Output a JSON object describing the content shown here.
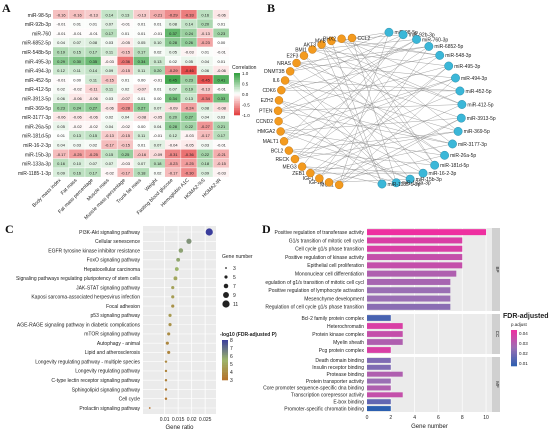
{
  "panels": {
    "a": {
      "label": "A",
      "rows": [
        "miR-98-5p",
        "miR-92b-3p",
        "miR-760",
        "miR-6852-5p",
        "miR-548b-5p",
        "miR-495-3p",
        "miR-494-3p",
        "miR-452-5p",
        "miR-412-5p",
        "miR-3913-5p",
        "miR-369-5p",
        "miR-3177-3p",
        "miR-26a-5p",
        "miR-181d-5p",
        "miR-16-2-3p",
        "miR-15b-3p",
        "miR-133a-3p",
        "miR-1185-1-3p"
      ],
      "left_cols": [
        "Body mass index",
        "Fat mass",
        "Fat mass percentage",
        "Muscle mass",
        "Muscle mass percentage",
        "Trunk fat mass",
        "Weight"
      ],
      "right_cols": [
        "Fasting blood glucose",
        "Hemoglobin A1C",
        "HOMA2-%S",
        "HOMA2-IR"
      ],
      "left_values": [
        [
          -0.16,
          -0.16,
          -0.13,
          0.14,
          0.13,
          -0.13,
          -0.21
        ],
        [
          -0.01,
          0.01,
          0.01,
          0.07,
          -0.01,
          0.01,
          0.01
        ],
        [
          -0.01,
          -0.01,
          -0.01,
          0.17,
          0.01,
          0.01,
          -0.01
        ],
        [
          0.04,
          0.07,
          0.08,
          0.03,
          -0.05,
          0.05,
          0.1
        ],
        [
          0.19,
          0.15,
          0.17,
          0.11,
          -0.15,
          0.17,
          0.02
        ],
        [
          0.29,
          0.3,
          0.35,
          -0.03,
          -0.36,
          0.34,
          0.13
        ],
        [
          0.12,
          0.11,
          0.14,
          0.09,
          -0.15,
          0.11,
          0.2
        ],
        [
          -0.01,
          0.0,
          0.11,
          -0.15,
          0.01,
          0.0,
          -0.01
        ],
        [
          0.02,
          -0.02,
          -0.11,
          0.11,
          0.02,
          -0.07,
          0.01
        ],
        [
          0.06,
          -0.06,
          -0.06,
          0.03,
          -0.07,
          0.01,
          0.0
        ],
        [
          0.23,
          0.24,
          0.27,
          -0.06,
          -0.28,
          0.27,
          0.07
        ],
        [
          -0.06,
          -0.06,
          -0.06,
          0.02,
          0.04,
          -0.08,
          -0.05
        ],
        [
          0.05,
          -0.02,
          -0.02,
          0.04,
          -0.02,
          0.0,
          0.04
        ],
        [
          0.01,
          0.13,
          0.15,
          -0.13,
          -0.15,
          0.11,
          -0.01
        ],
        [
          0.04,
          0.03,
          0.02,
          -0.17,
          -0.15,
          0.01,
          0.07
        ],
        [
          -0.17,
          -0.25,
          -0.25,
          0.15,
          0.25,
          -0.16,
          -0.09
        ],
        [
          0.16,
          0.1,
          0.07,
          0.07,
          -0.03,
          0.07,
          0.18
        ],
        [
          0.09,
          0.16,
          0.17,
          -0.02,
          -0.17,
          0.18,
          0.02
        ]
      ],
      "right_values": [
        [
          -0.29,
          -0.33,
          0.16,
          -0.06
        ],
        [
          0.08,
          0.14,
          0.2,
          0.01
        ],
        [
          0.37,
          0.24,
          -0.13,
          0.23
        ],
        [
          0.28,
          0.26,
          -0.23,
          0.0
        ],
        [
          0.05,
          -0.03,
          0.01,
          -0.01
        ],
        [
          0.02,
          0.05,
          0.04,
          0.01
        ],
        [
          -0.29,
          -0.46,
          0.06,
          -0.06
        ],
        [
          0.45,
          0.23,
          -0.45,
          0.41
        ],
        [
          0.07,
          0.19,
          -0.13,
          -0.01
        ],
        [
          0.34,
          0.13,
          -0.34,
          0.33
        ],
        [
          -0.09,
          -0.24,
          0.08,
          -0.08
        ],
        [
          0.2,
          0.27,
          0.04,
          0.03
        ],
        [
          0.28,
          0.22,
          -0.27,
          0.21
        ],
        [
          0.12,
          -0.03,
          -0.17,
          0.17
        ],
        [
          -0.04,
          -0.05,
          0.03,
          -0.01
        ],
        [
          -0.31,
          -0.36,
          0.22,
          -0.21
        ],
        [
          -0.23,
          -0.25,
          0.18,
          -0.15
        ],
        [
          -0.17,
          -0.3,
          0.09,
          -0.03
        ]
      ],
      "legend": {
        "title": "Correlation",
        "ticks": [
          "1.0",
          "0.5",
          "0.0",
          "-0.5",
          "-1.0"
        ]
      },
      "colors": {
        "positive": "#2e9e3a",
        "negative": "#e23b3b",
        "neutral": "#ffffff"
      }
    },
    "b": {
      "label": "B",
      "orange_nodes": [
        "MCL1",
        "IGF1R",
        "IGF1",
        "ZEB1",
        "MEG3",
        "RECK",
        "BCL2",
        "MALT1",
        "HMGA2",
        "CCND2",
        "PTEN",
        "EZH2",
        "CDK6",
        "IL6",
        "DNMT3B",
        "NRAS",
        "E2F3",
        "BMI1",
        "AKT3",
        "MYB",
        "PHX2",
        "CCL2"
      ],
      "blue_nodes": [
        "miR-98-5p",
        "miR-92b-3p",
        "miR-760-3p",
        "miR-6852-5p",
        "miR-548-3p",
        "miR-495-3p",
        "miR-494-3p",
        "miR-452-5p",
        "miR-412-5p",
        "miR-3913-5p",
        "miR-369-5p",
        "miR-3177-3p",
        "miR-26a-5p",
        "miR-181d-5p",
        "miR-16-2-3p",
        "miR-15b-3p",
        "miR-133a-3p",
        "miR-1185-1-3p"
      ],
      "colors": {
        "gene": "#f39a1e",
        "mirna": "#3bb7d8"
      }
    },
    "c": {
      "label": "C",
      "terms": [
        "PI3K-Akt signaling pathway",
        "Cellular senescence",
        "EGFR tyrosine kinase inhibitor resistance",
        "FoxO signaling pathway",
        "Hepatocellular carcinoma",
        "Signaling pathways regulating pluripotency of stem cells",
        "JAK-STAT signaling pathway",
        "Kaposi sarcoma-associated herpesvirus infection",
        "Focal adhesion",
        "p53 signaling pathway",
        "AGE-RAGE signaling pathway in diabetic complications",
        "mTOR signaling pathway",
        "Autophagy - animal",
        "Lipid and atherosclerosis",
        "Longevity regulating pathway - multiple species",
        "Longevity regulating pathway",
        "C-type lectin receptor signaling pathway",
        "Sphingolipid signaling pathway",
        "Cell cycle",
        "Prolactin signaling pathway"
      ],
      "gene_ratio": [
        0.0265,
        0.019,
        0.016,
        0.015,
        0.0145,
        0.014,
        0.013,
        0.013,
        0.013,
        0.012,
        0.012,
        0.0115,
        0.011,
        0.0115,
        0.0105,
        0.0105,
        0.0105,
        0.0105,
        0.0105,
        0.0045
      ],
      "gene_number": [
        11,
        8,
        7,
        6,
        6,
        6,
        5,
        5,
        5,
        5,
        5,
        5,
        5,
        5,
        4,
        4,
        4,
        4,
        4,
        3
      ],
      "neglog_fdr": [
        8,
        6.2,
        5.9,
        5.8,
        5.5,
        5.0,
        4.8,
        4.6,
        4.2,
        4.5,
        4.2,
        4.0,
        3.8,
        3.7,
        3.9,
        3.7,
        3.6,
        3.4,
        3.3,
        3.0
      ],
      "xlabel": "Gene ratio",
      "xticks": [
        0.01,
        0.015,
        0.02,
        0.025
      ],
      "xlim": [
        0.002,
        0.029
      ],
      "size_legend": {
        "title": "Gene number",
        "values": [
          3,
          5,
          7,
          9,
          11
        ]
      },
      "color_legend": {
        "title": "-log10 (FDR-adjusted P)",
        "ticks": [
          3,
          4,
          5,
          6,
          7,
          8
        ]
      }
    },
    "d": {
      "label": "D",
      "groups": [
        {
          "tag": "BP",
          "terms": [
            {
              "name": "Positive regulation of transferase activity",
              "value": 10.0,
              "p": 0.045
            },
            {
              "name": "G1/s transition of mitotic cell cycle",
              "value": 8.0,
              "p": 0.04
            },
            {
              "name": "Cell cycle g1/s phase transition",
              "value": 8.0,
              "p": 0.04
            },
            {
              "name": "Positive regulation of kinase activity",
              "value": 8.0,
              "p": 0.035
            },
            {
              "name": "Epithelial cell proliferation",
              "value": 8.0,
              "p": 0.035
            },
            {
              "name": "Mononuclear cell differentiation",
              "value": 7.5,
              "p": 0.03
            },
            {
              "name": "egulation of g1/s transition of mitotic cell cycl",
              "value": 7.0,
              "p": 0.028
            },
            {
              "name": "Positive regulation of lymphocyte activation",
              "value": 7.0,
              "p": 0.025
            },
            {
              "name": "Mesenchyme development",
              "value": 7.0,
              "p": 0.025
            },
            {
              "name": "Regulation of cell cycle g1/s phase transition",
              "value": 7.0,
              "p": 0.022
            }
          ]
        },
        {
          "tag": "CC",
          "terms": [
            {
              "name": "Bcl-2 family protein complex",
              "value": 2.0,
              "p": 0.01
            },
            {
              "name": "Heterochromatin",
              "value": 3.0,
              "p": 0.04
            },
            {
              "name": "Protein kinase complex",
              "value": 3.0,
              "p": 0.035
            },
            {
              "name": "Myelin sheath",
              "value": 3.0,
              "p": 0.03
            },
            {
              "name": "Pcg protein complex",
              "value": 2.0,
              "p": 0.04
            }
          ]
        },
        {
          "tag": "MF",
          "terms": [
            {
              "name": "Death domain binding",
              "value": 2.0,
              "p": 0.02
            },
            {
              "name": "Insulin receptor binding",
              "value": 2.0,
              "p": 0.02
            },
            {
              "name": "Protease binding",
              "value": 3.0,
              "p": 0.03
            },
            {
              "name": "Protein transporter activity",
              "value": 2.0,
              "p": 0.025
            },
            {
              "name": "Core promoter sequence-specific dna binding",
              "value": 2.0,
              "p": 0.03
            },
            {
              "name": "Transcription corepressor activity",
              "value": 3.0,
              "p": 0.035
            },
            {
              "name": "E-box binding",
              "value": 2.0,
              "p": 0.015
            },
            {
              "name": "Promoter-specific chromatin binding",
              "value": 2.0,
              "p": 0.005
            }
          ]
        }
      ],
      "xlabel": "Gene number",
      "xticks": [
        0,
        2,
        4,
        6,
        8,
        10
      ],
      "xlim": [
        0,
        10.5
      ],
      "legend": {
        "title": "FDR-adjusted P",
        "subtitle": "p.adjust",
        "ticks": [
          "0.04",
          "0.03",
          "0.02",
          "0.01"
        ]
      }
    }
  }
}
